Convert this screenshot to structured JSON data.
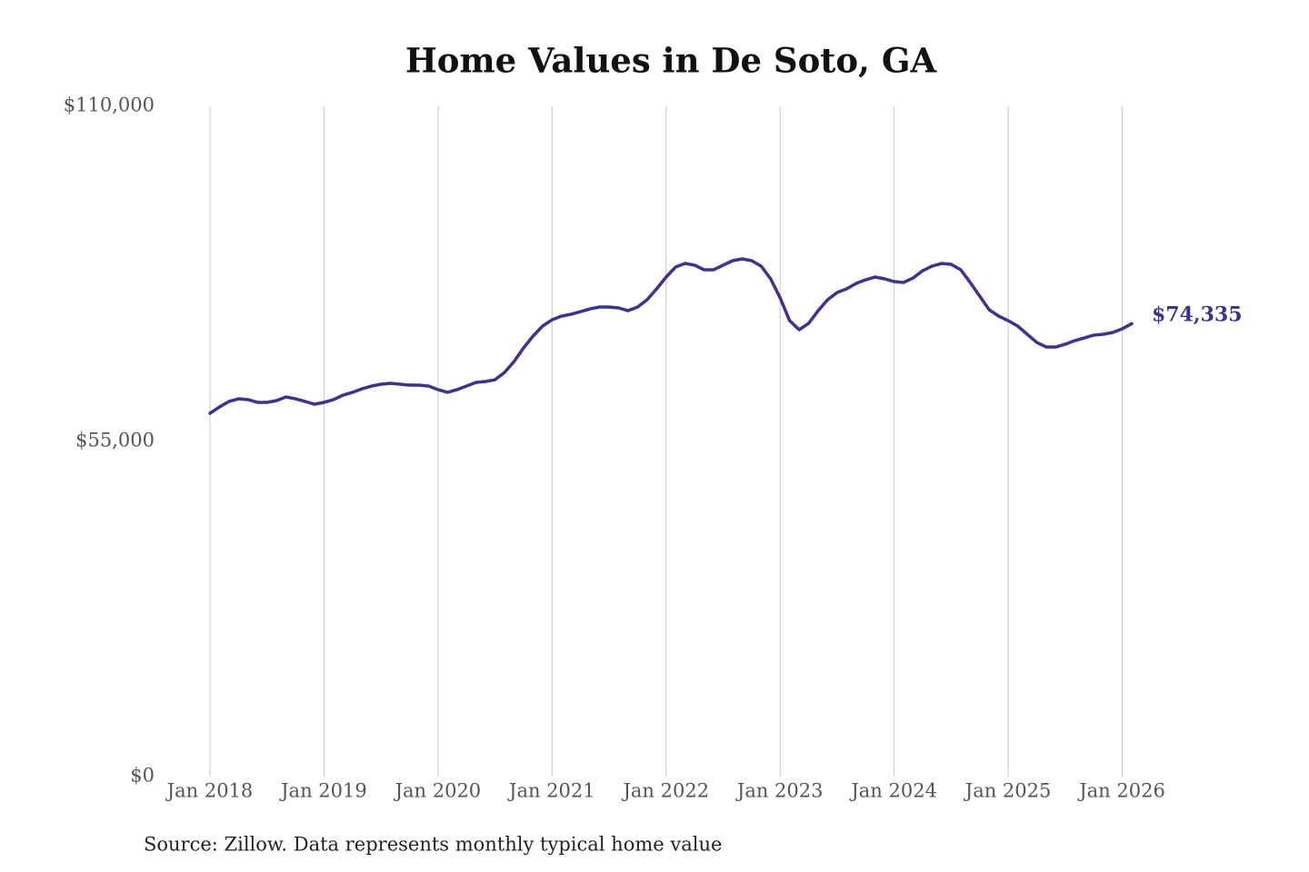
{
  "chart_data": {
    "type": "line",
    "title": "Home Values in De Soto, GA",
    "source": "Source: Zillow. Data represents monthly typical home value",
    "x": [
      "2018-01",
      "2018-02",
      "2018-03",
      "2018-04",
      "2018-05",
      "2018-06",
      "2018-07",
      "2018-08",
      "2018-09",
      "2018-10",
      "2018-11",
      "2018-12",
      "2019-01",
      "2019-02",
      "2019-03",
      "2019-04",
      "2019-05",
      "2019-06",
      "2019-07",
      "2019-08",
      "2019-09",
      "2019-10",
      "2019-11",
      "2019-12",
      "2020-01",
      "2020-02",
      "2020-03",
      "2020-04",
      "2020-05",
      "2020-06",
      "2020-07",
      "2020-08",
      "2020-09",
      "2020-10",
      "2020-11",
      "2020-12",
      "2021-01",
      "2021-02",
      "2021-03",
      "2021-04",
      "2021-05",
      "2021-06",
      "2021-07",
      "2021-08",
      "2021-09",
      "2021-10",
      "2021-11",
      "2021-12",
      "2022-01",
      "2022-02",
      "2022-03",
      "2022-04",
      "2022-05",
      "2022-06",
      "2022-07",
      "2022-08",
      "2022-09",
      "2022-10",
      "2022-11",
      "2022-12",
      "2023-01",
      "2023-02",
      "2023-03",
      "2023-04",
      "2023-05",
      "2023-06",
      "2023-07",
      "2023-08",
      "2023-09",
      "2023-10",
      "2023-11",
      "2023-12",
      "2024-01",
      "2024-02",
      "2024-03",
      "2024-04",
      "2024-05",
      "2024-06",
      "2024-07",
      "2024-08",
      "2024-09",
      "2024-10",
      "2024-11",
      "2024-12",
      "2025-01",
      "2025-02",
      "2025-03",
      "2025-04",
      "2025-05",
      "2025-06",
      "2025-07",
      "2025-08",
      "2025-09",
      "2025-10",
      "2025-11",
      "2025-12",
      "2026-01",
      "2026-02"
    ],
    "series": [
      {
        "name": "Home value",
        "color": "#3a3490",
        "values": [
          59620,
          60660,
          61560,
          62000,
          61860,
          61410,
          61410,
          61700,
          62300,
          62000,
          61560,
          61110,
          61410,
          61860,
          62600,
          63050,
          63640,
          64090,
          64390,
          64540,
          64390,
          64240,
          64240,
          64090,
          63500,
          63050,
          63500,
          64090,
          64690,
          64840,
          65130,
          66330,
          68120,
          70350,
          72290,
          73930,
          74970,
          75570,
          75870,
          76310,
          76760,
          77060,
          77060,
          76910,
          76460,
          77060,
          78250,
          80040,
          81980,
          83620,
          84210,
          83920,
          83170,
          83170,
          83920,
          84660,
          84960,
          84660,
          83770,
          81680,
          78550,
          74820,
          73330,
          74380,
          76460,
          78250,
          79440,
          80040,
          80940,
          81530,
          81980,
          81680,
          81230,
          81090,
          81830,
          83020,
          83770,
          84210,
          84070,
          83170,
          81090,
          78850,
          76610,
          75570,
          74820,
          73930,
          72590,
          71250,
          70500,
          70500,
          70950,
          71540,
          71990,
          72440,
          72590,
          72890,
          73480,
          74335
        ],
        "value_labels": [
          null,
          null,
          null,
          null,
          null,
          null,
          null,
          null,
          null,
          null,
          null,
          null,
          null,
          null,
          null,
          null,
          null,
          null,
          null,
          null,
          null,
          null,
          null,
          null,
          null,
          null,
          null,
          null,
          null,
          null,
          null,
          null,
          null,
          null,
          null,
          null,
          null,
          null,
          null,
          null,
          null,
          null,
          null,
          null,
          null,
          null,
          null,
          null,
          null,
          null,
          null,
          null,
          null,
          null,
          null,
          null,
          null,
          null,
          null,
          null,
          null,
          null,
          null,
          null,
          null,
          null,
          null,
          null,
          null,
          null,
          null,
          null,
          null,
          null,
          null,
          null,
          null,
          null,
          null,
          null,
          null,
          null,
          null,
          null,
          null,
          null,
          null,
          null,
          null,
          null,
          null,
          null,
          null,
          null,
          null,
          null,
          null,
          "$74,335"
        ]
      }
    ],
    "xlim": [
      "2018-01",
      "2026-02"
    ],
    "xticks": [
      {
        "value": "2018-01",
        "label": "Jan 2018"
      },
      {
        "value": "2019-01",
        "label": "Jan 2019"
      },
      {
        "value": "2020-01",
        "label": "Jan 2020"
      },
      {
        "value": "2021-01",
        "label": "Jan 2021"
      },
      {
        "value": "2022-01",
        "label": "Jan 2022"
      },
      {
        "value": "2023-01",
        "label": "Jan 2023"
      },
      {
        "value": "2024-01",
        "label": "Jan 2024"
      },
      {
        "value": "2025-01",
        "label": "Jan 2025"
      },
      {
        "value": "2026-01",
        "label": "Jan 2026"
      }
    ],
    "ylim": [
      0,
      110000
    ],
    "yticks": [
      {
        "value": 0,
        "label": "$0"
      },
      {
        "value": 55000,
        "label": "$55,000"
      },
      {
        "value": 110000,
        "label": "$110,000"
      }
    ],
    "grid": "x"
  }
}
